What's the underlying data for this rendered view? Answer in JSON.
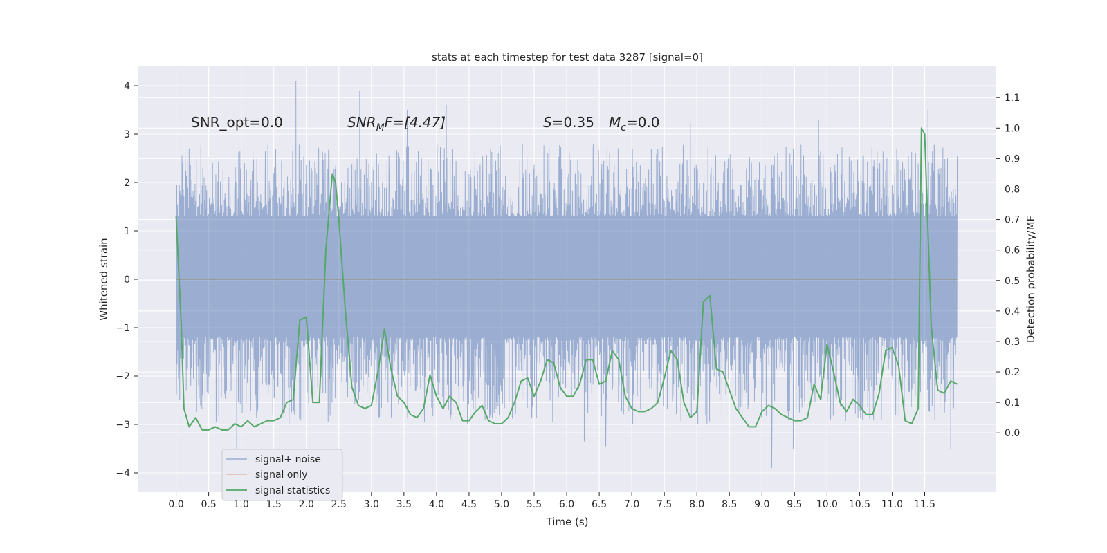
{
  "chart_data": {
    "type": "line",
    "title": "stats at each timestep for test data 3287 [signal=0]",
    "xlabel": "Time (s)",
    "ylabel": "Whitened strain",
    "y2label": "Detection probability/MF",
    "xlim": [
      -0.58,
      12.6
    ],
    "ylim": [
      -4.4,
      4.4
    ],
    "y2lim": [
      -0.1945,
      1.2025
    ],
    "xticks": [
      0.0,
      0.5,
      1.0,
      1.5,
      2.0,
      2.5,
      3.0,
      3.5,
      4.0,
      4.5,
      5.0,
      5.5,
      6.0,
      6.5,
      7.0,
      7.5,
      8.0,
      8.5,
      9.0,
      9.5,
      10.0,
      10.5,
      11.0,
      11.5
    ],
    "xtick_labels": [
      "0.0",
      "0.5",
      "1.0",
      "1.5",
      "2.0",
      "2.5",
      "3.0",
      "3.5",
      "4.0",
      "4.5",
      "5.0",
      "5.5",
      "6.0",
      "6.5",
      "7.0",
      "7.5",
      "8.0",
      "8.5",
      "9.0",
      "9.5",
      "10.0",
      "10.5",
      "11.0",
      "11.5"
    ],
    "yticks": [
      -4,
      -3,
      -2,
      -1,
      0,
      1,
      2,
      3,
      4
    ],
    "ytick_labels": [
      "−4",
      "−3",
      "−2",
      "−1",
      "0",
      "1",
      "2",
      "3",
      "4"
    ],
    "y2ticks": [
      0.0,
      0.1,
      0.2,
      0.3,
      0.4,
      0.5,
      0.6,
      0.7,
      0.8,
      0.9,
      1.0,
      1.1
    ],
    "y2tick_labels": [
      "0.0",
      "0.1",
      "0.2",
      "0.3",
      "0.4",
      "0.5",
      "0.6",
      "0.7",
      "0.8",
      "0.9",
      "1.0",
      "1.1"
    ],
    "grid": true,
    "legend_position": "bottom-left",
    "legend": [
      {
        "label": "signal+ noise",
        "color": "#4c72b0"
      },
      {
        "label": "signal only",
        "color": "#dd8452"
      },
      {
        "label": "signal statistics",
        "color": "#55a868"
      }
    ],
    "annotations": {
      "snr_opt": "SNR_opt=0.0",
      "snr_mf_main": "SNR",
      "snr_mf_sub": "M",
      "snr_mf_rest": "F=[4.47]",
      "s_main": "S",
      "s_rest": "=0.35",
      "mc_main": "M",
      "mc_sub": "c",
      "mc_rest": "=0.0"
    },
    "series": [
      {
        "name": "signal+ noise",
        "axis": "left",
        "color": "#4c72b0",
        "render": "dense noise band",
        "x_range": [
          0.0,
          12.0
        ],
        "envelope_pos": [
          1.3,
          2.8
        ],
        "envelope_neg": [
          -1.2,
          -3.0
        ],
        "extreme_peaks": [
          [
            1.84,
            4.1
          ],
          [
            2.82,
            3.9
          ],
          [
            3.55,
            3.5
          ],
          [
            4.15,
            3.6
          ],
          [
            7.9,
            3.2
          ],
          [
            9.87,
            3.3
          ],
          [
            11.55,
            3.5
          ],
          [
            0.93,
            -3.6
          ],
          [
            6.27,
            -3.35
          ],
          [
            6.6,
            -3.45
          ],
          [
            9.15,
            -3.9
          ],
          [
            9.48,
            -3.5
          ],
          [
            11.9,
            -3.5
          ]
        ]
      },
      {
        "name": "signal only",
        "axis": "left",
        "color": "#dd8452",
        "x": [
          0.0,
          12.0
        ],
        "y": [
          0.0,
          0.0
        ]
      },
      {
        "name": "signal statistics",
        "axis": "right",
        "color": "#55a868",
        "x": [
          0.0,
          0.08,
          0.12,
          0.2,
          0.3,
          0.4,
          0.5,
          0.6,
          0.7,
          0.8,
          0.9,
          1.0,
          1.1,
          1.2,
          1.3,
          1.4,
          1.5,
          1.6,
          1.7,
          1.8,
          1.9,
          2.0,
          2.1,
          2.2,
          2.3,
          2.4,
          2.45,
          2.5,
          2.6,
          2.7,
          2.8,
          2.9,
          3.0,
          3.1,
          3.2,
          3.3,
          3.4,
          3.5,
          3.6,
          3.7,
          3.8,
          3.9,
          4.0,
          4.1,
          4.2,
          4.3,
          4.4,
          4.5,
          4.6,
          4.7,
          4.8,
          4.9,
          5.0,
          5.1,
          5.2,
          5.3,
          5.4,
          5.5,
          5.6,
          5.7,
          5.8,
          5.9,
          6.0,
          6.1,
          6.2,
          6.3,
          6.4,
          6.5,
          6.6,
          6.7,
          6.8,
          6.9,
          7.0,
          7.1,
          7.2,
          7.3,
          7.4,
          7.5,
          7.6,
          7.7,
          7.8,
          7.9,
          8.0,
          8.1,
          8.2,
          8.3,
          8.4,
          8.5,
          8.6,
          8.7,
          8.8,
          8.9,
          9.0,
          9.1,
          9.2,
          9.3,
          9.4,
          9.5,
          9.6,
          9.7,
          9.8,
          9.9,
          10.0,
          10.1,
          10.2,
          10.3,
          10.4,
          10.5,
          10.6,
          10.7,
          10.8,
          10.9,
          11.0,
          11.1,
          11.2,
          11.3,
          11.4,
          11.45,
          11.5,
          11.6,
          11.7,
          11.8,
          11.9,
          12.0
        ],
        "y": [
          0.71,
          0.35,
          0.08,
          0.02,
          0.05,
          0.01,
          0.01,
          0.02,
          0.01,
          0.01,
          0.03,
          0.02,
          0.04,
          0.02,
          0.03,
          0.04,
          0.04,
          0.05,
          0.1,
          0.11,
          0.37,
          0.38,
          0.1,
          0.1,
          0.6,
          0.85,
          0.82,
          0.7,
          0.4,
          0.15,
          0.09,
          0.08,
          0.09,
          0.2,
          0.34,
          0.21,
          0.12,
          0.1,
          0.06,
          0.05,
          0.08,
          0.19,
          0.12,
          0.08,
          0.12,
          0.1,
          0.04,
          0.04,
          0.07,
          0.09,
          0.04,
          0.03,
          0.03,
          0.05,
          0.1,
          0.17,
          0.18,
          0.12,
          0.17,
          0.24,
          0.23,
          0.15,
          0.12,
          0.12,
          0.16,
          0.24,
          0.24,
          0.16,
          0.17,
          0.27,
          0.24,
          0.12,
          0.08,
          0.07,
          0.07,
          0.08,
          0.1,
          0.18,
          0.27,
          0.24,
          0.1,
          0.05,
          0.07,
          0.43,
          0.45,
          0.21,
          0.2,
          0.14,
          0.08,
          0.05,
          0.02,
          0.02,
          0.07,
          0.09,
          0.08,
          0.06,
          0.05,
          0.04,
          0.04,
          0.05,
          0.16,
          0.11,
          0.29,
          0.2,
          0.1,
          0.07,
          0.11,
          0.09,
          0.06,
          0.06,
          0.13,
          0.27,
          0.28,
          0.22,
          0.04,
          0.03,
          0.08,
          1.0,
          0.98,
          0.35,
          0.14,
          0.13,
          0.17,
          0.16
        ]
      }
    ]
  }
}
